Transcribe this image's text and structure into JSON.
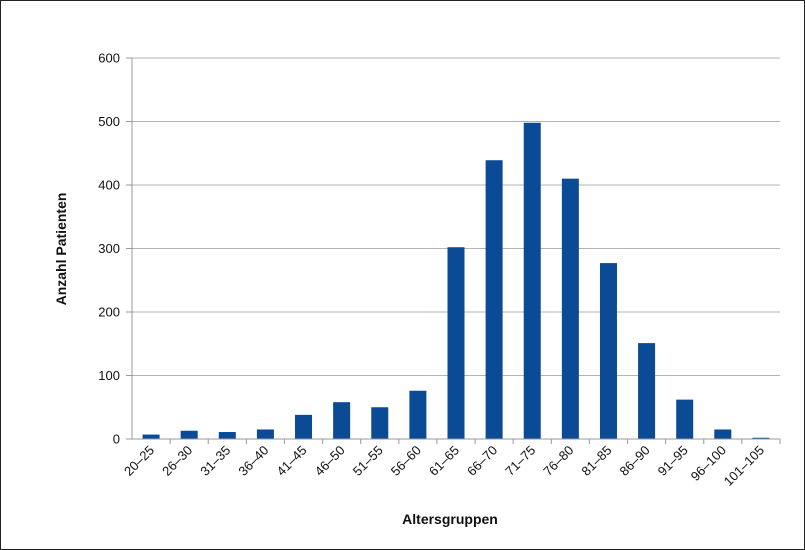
{
  "chart_data": {
    "type": "bar",
    "title": "",
    "xlabel": "Altersgruppen",
    "ylabel": "Anzahl Patienten",
    "categories": [
      "20–25",
      "26–30",
      "31–35",
      "36–40",
      "41–45",
      "46–50",
      "51–55",
      "56–60",
      "61–65",
      "66–70",
      "71–75",
      "76–80",
      "81–85",
      "86–90",
      "91–95",
      "96–100",
      "101–105"
    ],
    "values": [
      7,
      13,
      11,
      15,
      38,
      58,
      50,
      76,
      302,
      439,
      498,
      410,
      277,
      151,
      62,
      15,
      2
    ],
    "ylim": [
      0,
      600
    ],
    "yticks": [
      "0",
      "100",
      "200",
      "300",
      "400",
      "500",
      "600"
    ],
    "grid": true,
    "legend": "none",
    "colors": {
      "bar": "#0b4a94",
      "grid": "#b3b3b3",
      "axis": "#999999"
    }
  }
}
